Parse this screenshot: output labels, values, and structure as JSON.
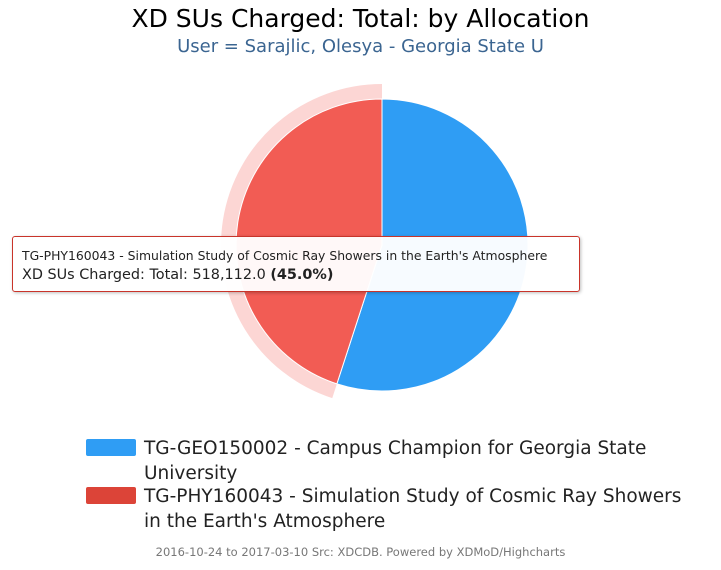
{
  "title": "XD SUs Charged: Total: by Allocation",
  "subtitle": "User = Sarajlic, Olesya - Georgia State U",
  "chart_data": {
    "type": "pie",
    "categories": [
      "TG-GEO150002 - Campus Champion for Georgia State University",
      "TG-PHY160043 - Simulation Study of Cosmic Ray Showers in the Earth's Atmosphere"
    ],
    "values": [
      633248.0,
      518112.0
    ],
    "percents": [
      55.0,
      45.0
    ],
    "colors": [
      "#2f9df4",
      "#f25c54"
    ],
    "hovered_index": 1,
    "legend_position": "bottom",
    "start_angle": "top, clockwise"
  },
  "tooltip": {
    "line1": "TG-PHY160043 - Simulation Study of Cosmic Ray Showers in the Earth's Atmosphere",
    "series_label": "XD SUs Charged: Total: ",
    "value_text": "518,112.0",
    "percent_text": "(45.0%)"
  },
  "legend": {
    "items": [
      {
        "label": "TG-GEO150002 - Campus Champion for Georgia State University",
        "color": "#2f9df4"
      },
      {
        "label": "TG-PHY160043 - Simulation Study of Cosmic Ray Showers in the Earth's Atmosphere",
        "color": "#dc4438"
      }
    ]
  },
  "credits": "2016-10-24 to 2017-03-10 Src: XDCDB. Powered by XDMoD/Highcharts"
}
